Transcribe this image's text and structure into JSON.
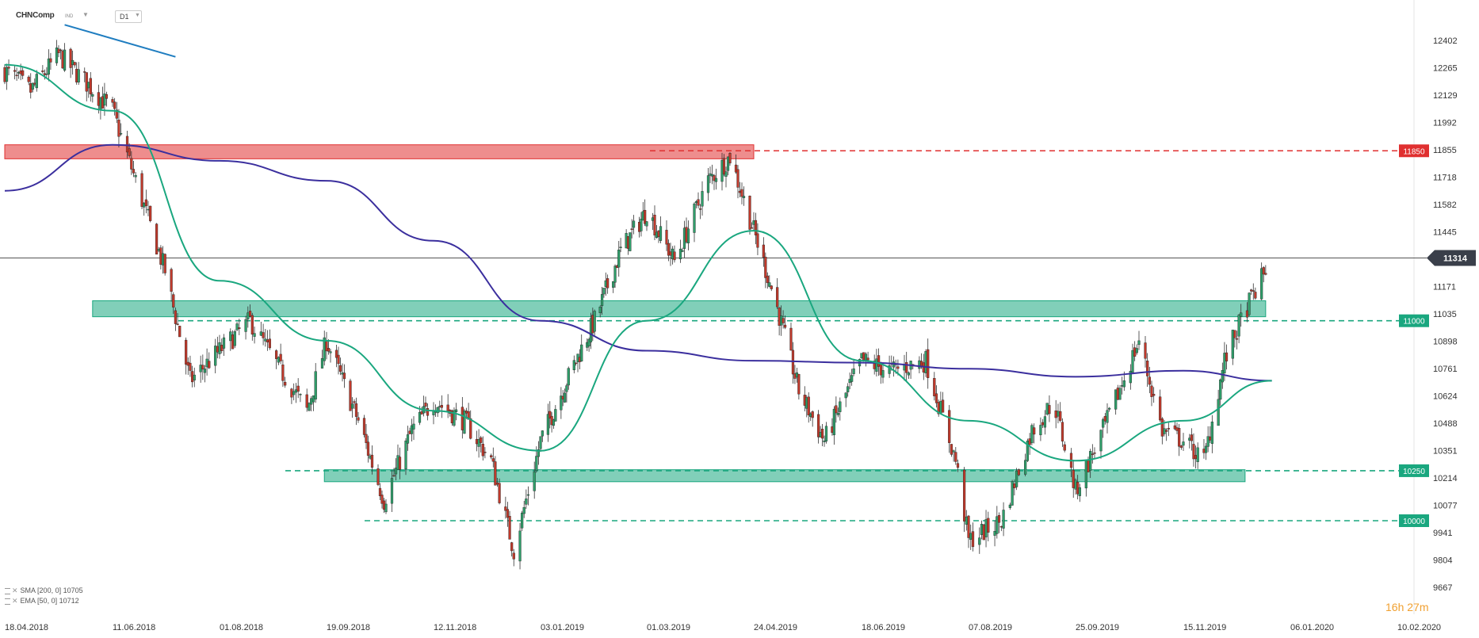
{
  "header": {
    "symbol": "CHNComp",
    "type": "IND",
    "timeframe": "D1"
  },
  "indicators": [
    {
      "label": "SMA [200, 0] 10705",
      "color": "#3b2f9e"
    },
    {
      "label": "EMA [50, 0] 10712",
      "color": "#1aa77f"
    }
  ],
  "timer": "16h 27m",
  "chart_data": {
    "type": "candlestick",
    "title": "",
    "y_ticks": [
      12402,
      12265,
      12129,
      11992,
      11855,
      11718,
      11582,
      11445,
      11171,
      11035,
      10898,
      10761,
      10624,
      10488,
      10351,
      10214,
      10077,
      9941,
      9804,
      9667
    ],
    "ylim": [
      9630,
      12480
    ],
    "x_ticks": [
      "18.04.2018",
      "11.06.2018",
      "01.08.2018",
      "19.09.2018",
      "12.11.2018",
      "03.01.2019",
      "01.03.2019",
      "24.04.2019",
      "18.06.2019",
      "07.08.2019",
      "25.09.2019",
      "15.11.2019",
      "06.01.2020",
      "10.02.2020"
    ],
    "current_price": 11314,
    "levels": [
      {
        "value": 11850,
        "label": "11850",
        "color": "#e03030",
        "style": "dashed"
      },
      {
        "value": 11000,
        "label": "11000",
        "color": "#1aa77f",
        "style": "dashed"
      },
      {
        "value": 10250,
        "label": "10250",
        "color": "#1aa77f",
        "style": "dashed"
      },
      {
        "value": 10000,
        "label": "10000",
        "color": "#1aa77f",
        "style": "dashed"
      }
    ],
    "zones": [
      {
        "from_date": "18.04.2018",
        "to_date": "24.04.2019",
        "low": 11810,
        "high": 11880,
        "color": "#e03030"
      },
      {
        "from_date": "01.06.2018",
        "to_date": "25.12.2019",
        "low": 11020,
        "high": 11100,
        "color": "#1aa77f"
      },
      {
        "from_date": "18.09.2018",
        "to_date": "15.12.2019",
        "low": 10195,
        "high": 10255,
        "color": "#1aa77f"
      }
    ],
    "trendline": {
      "from": [
        "18.05.2018",
        12480
      ],
      "to": [
        "11.07.2018",
        12320
      ],
      "color": "#1f7dc0"
    },
    "close_path": [
      [
        "18.04.2018",
        12250
      ],
      [
        "01.05.2018",
        12150
      ],
      [
        "15.05.2018",
        12330
      ],
      [
        "28.05.2018",
        12200
      ],
      [
        "11.06.2018",
        12050
      ],
      [
        "22.06.2018",
        11700
      ],
      [
        "06.07.2018",
        11250
      ],
      [
        "18.07.2018",
        10700
      ],
      [
        "01.08.2018",
        10850
      ],
      [
        "15.08.2018",
        11000
      ],
      [
        "29.08.2018",
        10750
      ],
      [
        "10.09.2018",
        10550
      ],
      [
        "19.09.2018",
        10900
      ],
      [
        "05.10.2018",
        10500
      ],
      [
        "18.10.2018",
        10100
      ],
      [
        "01.11.2018",
        10450
      ],
      [
        "12.11.2018",
        10600
      ],
      [
        "27.11.2018",
        10500
      ],
      [
        "10.12.2018",
        10300
      ],
      [
        "21.12.2018",
        9850
      ],
      [
        "03.01.2019",
        10400
      ],
      [
        "17.01.2019",
        10700
      ],
      [
        "01.02.2019",
        11000
      ],
      [
        "15.02.2019",
        11350
      ],
      [
        "01.03.2019",
        11550
      ],
      [
        "15.03.2019",
        11300
      ],
      [
        "01.04.2019",
        11700
      ],
      [
        "12.04.2019",
        11820
      ],
      [
        "24.04.2019",
        11450
      ],
      [
        "05.05.2019",
        11100
      ],
      [
        "17.05.2019",
        10650
      ],
      [
        "30.05.2019",
        10400
      ],
      [
        "18.06.2019",
        10800
      ],
      [
        "02.07.2019",
        10750
      ],
      [
        "18.07.2019",
        10800
      ],
      [
        "01.08.2019",
        10300
      ],
      [
        "07.08.2019",
        9900
      ],
      [
        "22.08.2019",
        10000
      ],
      [
        "05.09.2019",
        10450
      ],
      [
        "15.09.2019",
        10600
      ],
      [
        "25.09.2019",
        10150
      ],
      [
        "10.10.2019",
        10500
      ],
      [
        "25.10.2019",
        10900
      ],
      [
        "05.11.2019",
        10450
      ],
      [
        "15.11.2019",
        10400
      ],
      [
        "25.11.2019",
        10300
      ],
      [
        "05.12.2019",
        10800
      ],
      [
        "15.12.2019",
        11050
      ],
      [
        "25.12.2019",
        11250
      ]
    ],
    "series": [
      {
        "name": "SMA [200, 0]",
        "value": 10705,
        "color": "#3b2f9e",
        "points": [
          [
            "18.04.2018",
            11650
          ],
          [
            "11.06.2018",
            11880
          ],
          [
            "01.08.2018",
            11800
          ],
          [
            "19.09.2018",
            11700
          ],
          [
            "12.11.2018",
            11400
          ],
          [
            "03.01.2019",
            11000
          ],
          [
            "01.03.2019",
            10850
          ],
          [
            "24.04.2019",
            10800
          ],
          [
            "18.06.2019",
            10790
          ],
          [
            "07.08.2019",
            10760
          ],
          [
            "25.09.2019",
            10720
          ],
          [
            "15.11.2019",
            10750
          ],
          [
            "28.12.2019",
            10700
          ]
        ]
      },
      {
        "name": "EMA [50, 0]",
        "value": 10712,
        "color": "#1aa77f",
        "points": [
          [
            "18.04.2018",
            12280
          ],
          [
            "11.06.2018",
            12050
          ],
          [
            "01.08.2018",
            11200
          ],
          [
            "19.09.2018",
            10900
          ],
          [
            "12.11.2018",
            10550
          ],
          [
            "03.01.2019",
            10350
          ],
          [
            "01.03.2019",
            11000
          ],
          [
            "24.04.2019",
            11450
          ],
          [
            "18.06.2019",
            10800
          ],
          [
            "07.08.2019",
            10500
          ],
          [
            "25.09.2019",
            10300
          ],
          [
            "15.11.2019",
            10500
          ],
          [
            "28.12.2019",
            10700
          ]
        ]
      }
    ]
  }
}
